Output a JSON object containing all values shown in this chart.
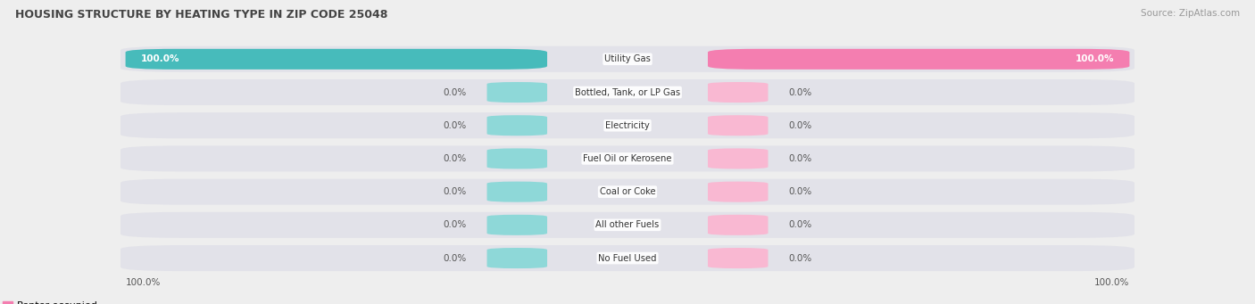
{
  "title": "HOUSING STRUCTURE BY HEATING TYPE IN ZIP CODE 25048",
  "source": "Source: ZipAtlas.com",
  "categories": [
    "Utility Gas",
    "Bottled, Tank, or LP Gas",
    "Electricity",
    "Fuel Oil or Kerosene",
    "Coal or Coke",
    "All other Fuels",
    "No Fuel Used"
  ],
  "owner_values": [
    100.0,
    0.0,
    0.0,
    0.0,
    0.0,
    0.0,
    0.0
  ],
  "renter_values": [
    100.0,
    0.0,
    0.0,
    0.0,
    0.0,
    0.0,
    0.0
  ],
  "owner_color": "#47BBBB",
  "renter_color": "#F47EB0",
  "bg_color": "#EEEEEE",
  "row_bg_color": "#E2E2E9",
  "stub_owner_color": "#8ED8D8",
  "stub_renter_color": "#F9B8D2",
  "title_color": "#444444",
  "value_color_dark": "#555555",
  "figsize": [
    14.06,
    3.41
  ],
  "dpi": 100
}
